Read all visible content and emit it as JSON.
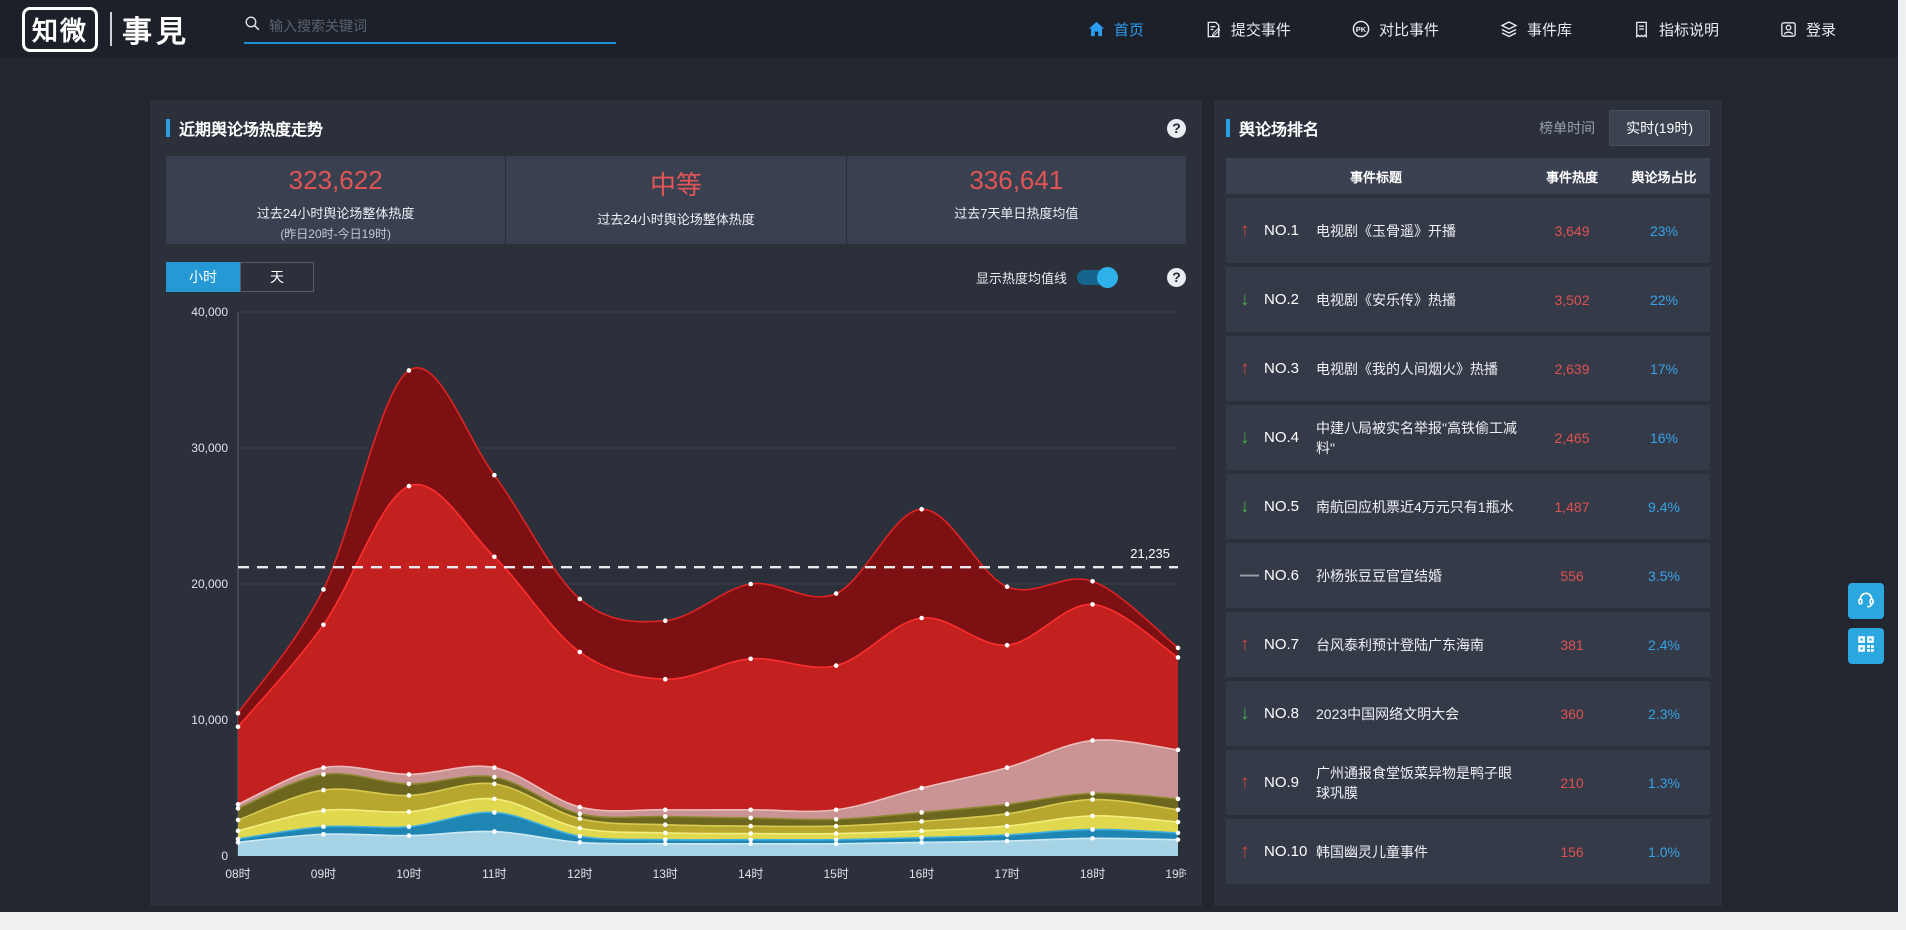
{
  "navbar": {
    "logo": {
      "primary": "知微",
      "secondary": "事見"
    },
    "search_placeholder": "输入搜索关键词",
    "items": [
      {
        "label": "首页",
        "icon": "home-icon",
        "active": true
      },
      {
        "label": "提交事件",
        "icon": "submit-event-icon",
        "active": false
      },
      {
        "label": "对比事件",
        "icon": "pk-icon",
        "active": false
      },
      {
        "label": "事件库",
        "icon": "event-library-icon",
        "active": false
      },
      {
        "label": "指标说明",
        "icon": "metric-doc-icon",
        "active": false
      },
      {
        "label": "登录",
        "icon": "login-icon",
        "active": false
      }
    ]
  },
  "trend_panel": {
    "title": "近期舆论场热度走势",
    "stats": [
      {
        "value": "323,622",
        "label": "过去24小时舆论场整体热度",
        "sublabel": "(昨日20时-今日19时)"
      },
      {
        "value": "中等",
        "label": "过去24小时舆论场整体热度",
        "sublabel": ""
      },
      {
        "value": "336,641",
        "label": "过去7天单日热度均值",
        "sublabel": ""
      }
    ],
    "tabs": [
      {
        "label": "小时",
        "active": true
      },
      {
        "label": "天",
        "active": false
      }
    ],
    "toggle_label": "显示热度均值线",
    "toggle_on": true
  },
  "chart_data": {
    "type": "area",
    "stacked": true,
    "x": [
      "08时",
      "09时",
      "10时",
      "11时",
      "12时",
      "13时",
      "14时",
      "15时",
      "16时",
      "17时",
      "18时",
      "19时"
    ],
    "ylim": [
      0,
      40000
    ],
    "yticks": [
      0,
      10000,
      20000,
      30000,
      40000
    ],
    "ytick_labels": [
      "0",
      "10,000",
      "20,000",
      "30,000",
      "40,000"
    ],
    "grid": true,
    "legend": "none",
    "average_line": {
      "value": 21235,
      "label": "21,235",
      "style": "dashed-white"
    },
    "series": [
      {
        "name": "layer-1",
        "fill": "#a6d3e6",
        "line": "#cdeaf4",
        "values": [
          1000,
          1600,
          1500,
          1800,
          1000,
          900,
          900,
          900,
          1000,
          1100,
          1300,
          1200
        ]
      },
      {
        "name": "layer-2",
        "fill": "#1f86b4",
        "line": "#3fb0e0",
        "values": [
          250,
          550,
          650,
          1400,
          450,
          300,
          300,
          300,
          350,
          450,
          650,
          500
        ]
      },
      {
        "name": "layer-3",
        "fill": "#e0d84e",
        "line": "#f4ee7e",
        "values": [
          600,
          1200,
          1100,
          1000,
          600,
          500,
          450,
          450,
          500,
          650,
          1000,
          800
        ]
      },
      {
        "name": "layer-4",
        "fill": "#b7a72f",
        "line": "#d8ca52",
        "values": [
          800,
          1500,
          1200,
          1100,
          700,
          600,
          550,
          550,
          700,
          900,
          1200,
          900
        ]
      },
      {
        "name": "layer-5",
        "fill": "#6d661e",
        "line": "#8f8833",
        "values": [
          850,
          1150,
          850,
          500,
          350,
          600,
          600,
          500,
          650,
          700,
          450,
          800
        ]
      },
      {
        "name": "layer-6",
        "fill": "#cb9494",
        "line": "#edbcbc",
        "values": [
          300,
          500,
          700,
          700,
          500,
          500,
          600,
          700,
          1800,
          2700,
          3900,
          3600
        ]
      },
      {
        "name": "layer-7",
        "fill": "#c32020",
        "line": "#ff2e2e",
        "values": [
          5700,
          10500,
          21200,
          15500,
          11400,
          9600,
          11100,
          10600,
          12500,
          9000,
          10000,
          6800
        ]
      },
      {
        "name": "layer-8",
        "fill": "#7c1013",
        "line": "#e02222",
        "values": [
          1000,
          2600,
          8500,
          6000,
          3900,
          4300,
          5500,
          5300,
          8000,
          4300,
          1700,
          700
        ]
      }
    ]
  },
  "rank_panel": {
    "title": "舆论场排名",
    "time_label": "榜单时间",
    "time_value": "实时(19时)",
    "columns": [
      "事件标题",
      "事件热度",
      "舆论场占比"
    ],
    "rows": [
      {
        "rank": "NO.1",
        "trend": "up",
        "title": "电视剧《玉骨遥》开播",
        "heat": "3,649",
        "share": "23%"
      },
      {
        "rank": "NO.2",
        "trend": "down",
        "title": "电视剧《安乐传》热播",
        "heat": "3,502",
        "share": "22%"
      },
      {
        "rank": "NO.3",
        "trend": "up",
        "title": "电视剧《我的人间烟火》热播",
        "heat": "2,639",
        "share": "17%"
      },
      {
        "rank": "NO.4",
        "trend": "down",
        "title": "中建八局被实名举报\"高铁偷工减料\"",
        "heat": "2,465",
        "share": "16%"
      },
      {
        "rank": "NO.5",
        "trend": "down",
        "title": "南航回应机票近4万元只有1瓶水",
        "heat": "1,487",
        "share": "9.4%"
      },
      {
        "rank": "NO.6",
        "trend": "flat",
        "title": "孙杨张豆豆官宣结婚",
        "heat": "556",
        "share": "3.5%"
      },
      {
        "rank": "NO.7",
        "trend": "up",
        "title": "台风泰利预计登陆广东海南",
        "heat": "381",
        "share": "2.4%"
      },
      {
        "rank": "NO.8",
        "trend": "down",
        "title": "2023中国网络文明大会",
        "heat": "360",
        "share": "2.3%"
      },
      {
        "rank": "NO.9",
        "trend": "up",
        "title": "广州通报食堂饭菜异物是鸭子眼球巩膜",
        "heat": "210",
        "share": "1.3%"
      },
      {
        "rank": "NO.10",
        "trend": "up",
        "title": "韩国幽灵儿童事件",
        "heat": "156",
        "share": "1.0%"
      }
    ]
  },
  "colors": {
    "accent_blue": "#2a9fe0",
    "active_nav": "#2b9df0",
    "stat_red": "#e25555",
    "heat_red": "#e05252",
    "share_blue": "#36a3e8",
    "up_arrow": "#d9453c",
    "down_arrow": "#49ad49",
    "panel_bg": "#2b303b",
    "row_bg": "#343a47"
  }
}
